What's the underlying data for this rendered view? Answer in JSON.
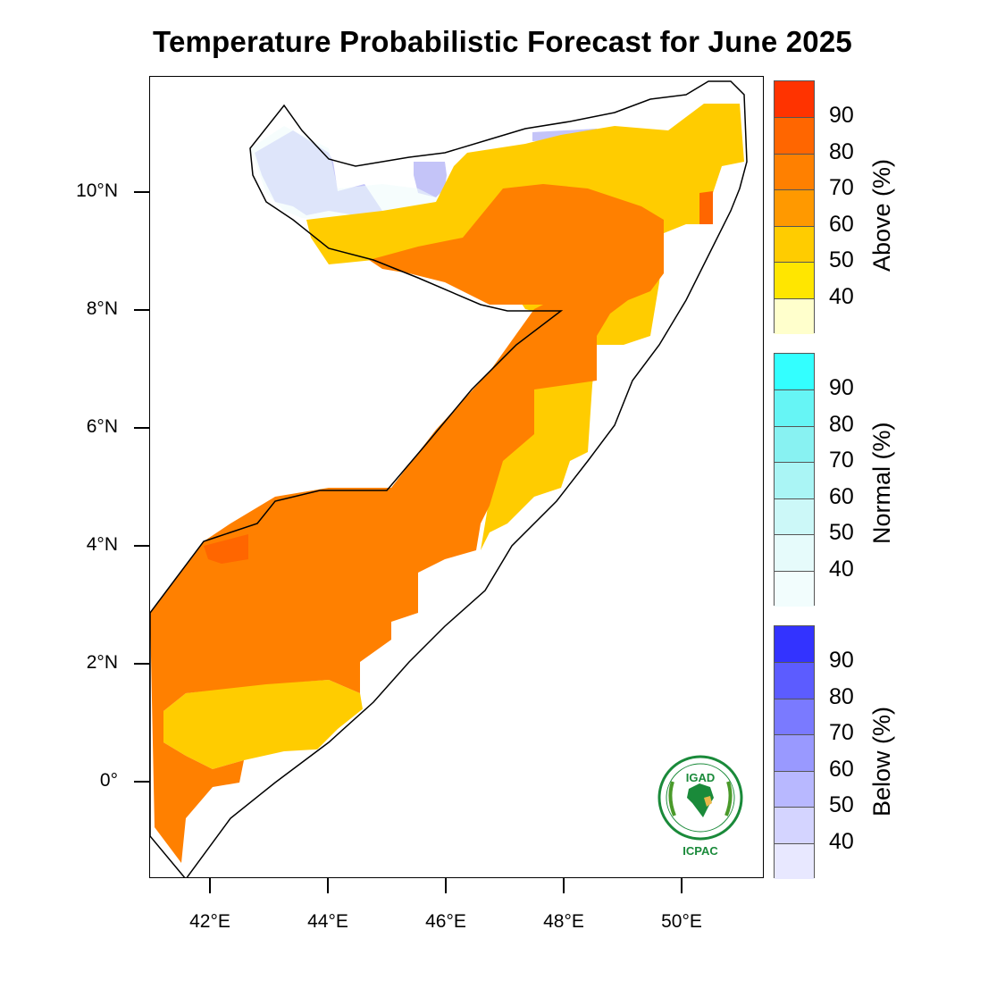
{
  "title": "Temperature Probabilistic Forecast for June 2025",
  "axes": {
    "y_ticks": [
      "10°N",
      "8°N",
      "6°N",
      "4°N",
      "2°N",
      "0°"
    ],
    "x_ticks": [
      "42°E",
      "44°E",
      "46°E",
      "48°E",
      "50°E"
    ]
  },
  "legends": [
    {
      "title": "Above (%)",
      "labels": [
        "90",
        "80",
        "70",
        "60",
        "50",
        "40"
      ],
      "colors": [
        "#ff3300",
        "#ff6600",
        "#ff8000",
        "#ff9900",
        "#ffcc00",
        "#ffe600",
        "#ffffcc"
      ]
    },
    {
      "title": "Normal (%)",
      "labels": [
        "90",
        "80",
        "70",
        "60",
        "50",
        "40"
      ],
      "colors": [
        "#33ffff",
        "#66f5f5",
        "#88f2f2",
        "#aaf5f5",
        "#ccf8f8",
        "#e6fbfb",
        "#f2fdfd"
      ]
    },
    {
      "title": "Below (%)",
      "labels": [
        "90",
        "80",
        "70",
        "60",
        "50",
        "40"
      ],
      "colors": [
        "#3333ff",
        "#5c5cff",
        "#7a7aff",
        "#9999ff",
        "#b8b8ff",
        "#d4d4ff",
        "#e8e8ff"
      ]
    }
  ],
  "logo": {
    "top_text": "IGAD",
    "bottom_text": "ICPAC"
  },
  "map_colors": {
    "above_80": "#ff6600",
    "above_70": "#ff8000",
    "above_50": "#ffcc00",
    "below_50": "#c4c4f8",
    "normal_40": "#f0fcfc"
  }
}
